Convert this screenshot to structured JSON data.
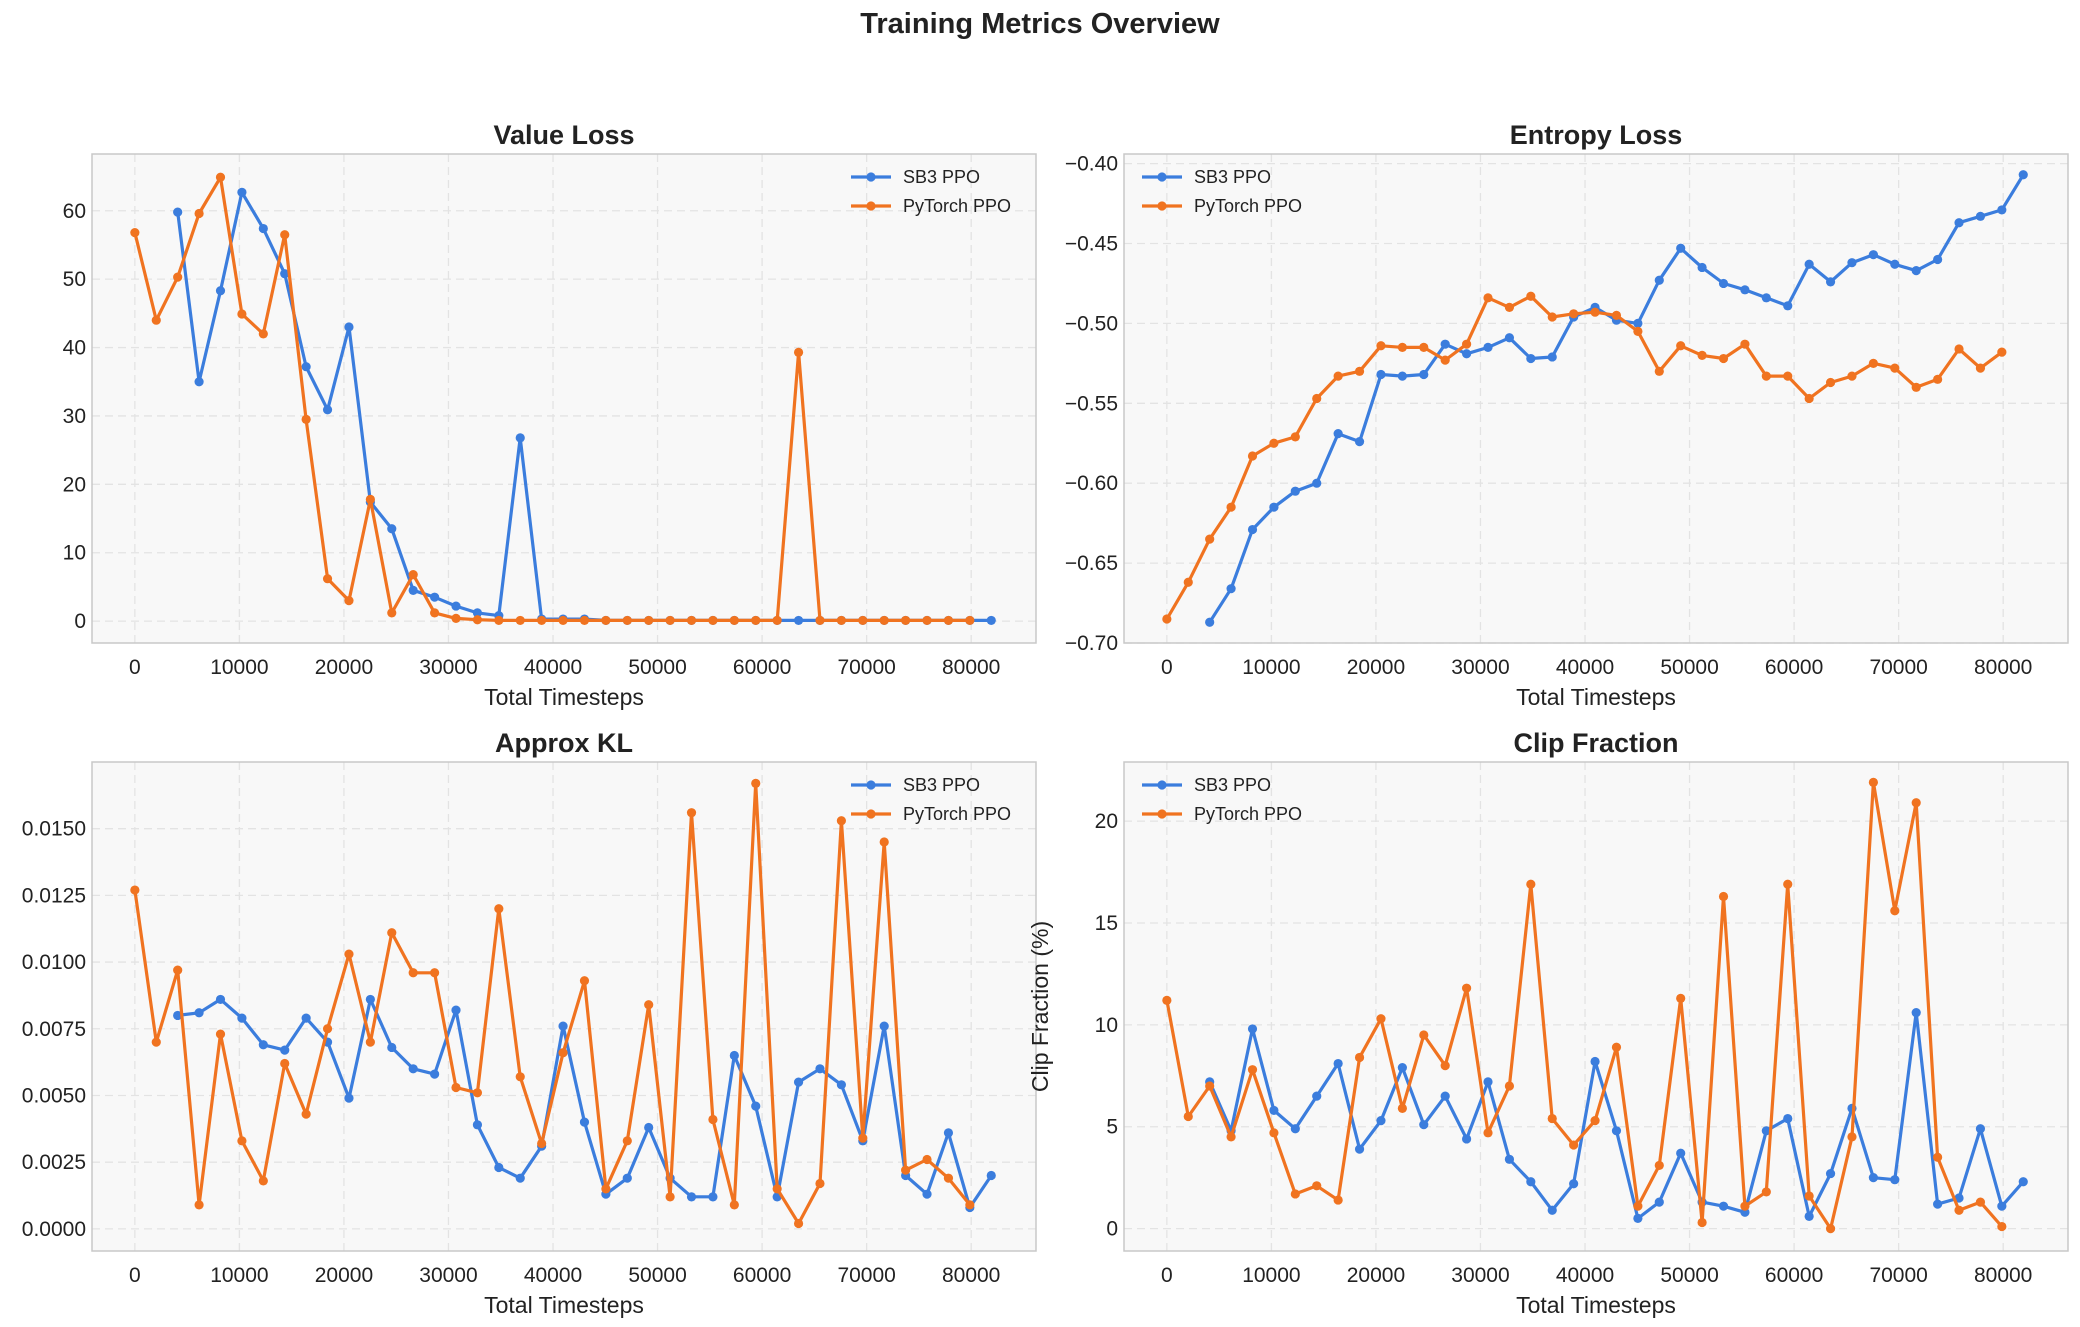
{
  "figure": {
    "title": "Training Metrics Overview"
  },
  "colors": {
    "sb3": "#3b7ddd",
    "pytorch": "#f07320",
    "plot_bg": "#f8f8f8",
    "grid": "#e3e3e3",
    "frame": "#c8c8c8",
    "text": "#222222"
  },
  "chart_data": [
    {
      "type": "line",
      "title": "Value Loss",
      "xlabel": "Total Timesteps",
      "ylabel": "",
      "xlim": [
        -4100,
        86200
      ],
      "ylim": [
        -3.2,
        68.3
      ],
      "xticks": [
        0,
        10000,
        20000,
        30000,
        40000,
        50000,
        60000,
        70000,
        80000
      ],
      "xtick_labels": [
        "0",
        "10000",
        "20000",
        "30000",
        "40000",
        "50000",
        "60000",
        "70000",
        "80000"
      ],
      "yticks": [
        0,
        10,
        20,
        30,
        40,
        50,
        60
      ],
      "ytick_labels": [
        "0",
        "10",
        "20",
        "30",
        "40",
        "50",
        "60"
      ],
      "legend": "top-right",
      "grid": true,
      "series": [
        {
          "name": "SB3 PPO",
          "x": [
            4096,
            6144,
            8192,
            10240,
            12288,
            14336,
            16384,
            18432,
            20480,
            22528,
            24576,
            26624,
            28672,
            30720,
            32768,
            34816,
            36864,
            38912,
            40960,
            43008,
            45056,
            47104,
            49152,
            51200,
            53248,
            55296,
            57344,
            59392,
            61440,
            63488,
            65536,
            67584,
            69632,
            71680,
            73728,
            75776,
            77824,
            79872,
            81920
          ],
          "values": [
            59.8,
            35,
            48.3,
            62.7,
            57.4,
            50.8,
            37.2,
            30.9,
            43,
            17.4,
            13.5,
            4.5,
            3.5,
            2.2,
            1.2,
            0.8,
            26.8,
            0.3,
            0.3,
            0.3,
            0.1,
            0.1,
            0.1,
            0.1,
            0.1,
            0.1,
            0.1,
            0.1,
            0.1,
            0.1,
            0.1,
            0.1,
            0.1,
            0.1,
            0.1,
            0.1,
            0.1,
            0.1,
            0.1
          ]
        },
        {
          "name": "PyTorch PPO",
          "x": [
            0,
            2048,
            4096,
            6144,
            8192,
            10240,
            12288,
            14336,
            16384,
            18432,
            20480,
            22528,
            24576,
            26624,
            28672,
            30720,
            32768,
            34816,
            36864,
            38912,
            40960,
            43008,
            45056,
            47104,
            49152,
            51200,
            53248,
            55296,
            57344,
            59392,
            61440,
            63488,
            65536,
            67584,
            69632,
            71680,
            73728,
            75776,
            77824,
            79872
          ],
          "values": [
            56.8,
            44,
            50.3,
            59.6,
            64.9,
            44.9,
            42,
            56.5,
            29.5,
            6.2,
            3,
            17.8,
            1.2,
            6.8,
            1.2,
            0.4,
            0.2,
            0.1,
            0.1,
            0.1,
            0.1,
            0.1,
            0.1,
            0.1,
            0.1,
            0.1,
            0.1,
            0.1,
            0.1,
            0.1,
            0.1,
            39.3,
            0.1,
            0.1,
            0.1,
            0.1,
            0.1,
            0.1,
            0.1,
            0.1
          ]
        }
      ]
    },
    {
      "type": "line",
      "title": "Entropy Loss",
      "xlabel": "Total Timesteps",
      "ylabel": "",
      "xlim": [
        -4100,
        86200
      ],
      "ylim": [
        -0.7,
        -0.394
      ],
      "xticks": [
        0,
        10000,
        20000,
        30000,
        40000,
        50000,
        60000,
        70000,
        80000
      ],
      "xtick_labels": [
        "0",
        "10000",
        "20000",
        "30000",
        "40000",
        "50000",
        "60000",
        "70000",
        "80000"
      ],
      "yticks": [
        -0.7,
        -0.65,
        -0.6,
        -0.55,
        -0.5,
        -0.45,
        -0.4
      ],
      "ytick_labels": [
        "−0.70",
        "−0.65",
        "−0.60",
        "−0.55",
        "−0.50",
        "−0.45",
        "−0.40"
      ],
      "legend": "top-left",
      "grid": true,
      "series": [
        {
          "name": "SB3 PPO",
          "x": [
            4096,
            6144,
            8192,
            10240,
            12288,
            14336,
            16384,
            18432,
            20480,
            22528,
            24576,
            26624,
            28672,
            30720,
            32768,
            34816,
            36864,
            38912,
            40960,
            43008,
            45056,
            47104,
            49152,
            51200,
            53248,
            55296,
            57344,
            59392,
            61440,
            63488,
            65536,
            67584,
            69632,
            71680,
            73728,
            75776,
            77824,
            79872,
            81920
          ],
          "values": [
            -0.687,
            -0.666,
            -0.629,
            -0.615,
            -0.605,
            -0.6,
            -0.569,
            -0.574,
            -0.532,
            -0.533,
            -0.532,
            -0.513,
            -0.519,
            -0.515,
            -0.509,
            -0.522,
            -0.521,
            -0.496,
            -0.49,
            -0.498,
            -0.5,
            -0.473,
            -0.453,
            -0.465,
            -0.475,
            -0.479,
            -0.484,
            -0.489,
            -0.463,
            -0.474,
            -0.462,
            -0.457,
            -0.463,
            -0.467,
            -0.46,
            -0.437,
            -0.433,
            -0.429,
            -0.407
          ]
        },
        {
          "name": "PyTorch PPO",
          "x": [
            0,
            2048,
            4096,
            6144,
            8192,
            10240,
            12288,
            14336,
            16384,
            18432,
            20480,
            22528,
            24576,
            26624,
            28672,
            30720,
            32768,
            34816,
            36864,
            38912,
            40960,
            43008,
            45056,
            47104,
            49152,
            51200,
            53248,
            55296,
            57344,
            59392,
            61440,
            63488,
            65536,
            67584,
            69632,
            71680,
            73728,
            75776,
            77824,
            79872
          ],
          "values": [
            -0.685,
            -0.662,
            -0.635,
            -0.615,
            -0.583,
            -0.575,
            -0.571,
            -0.547,
            -0.533,
            -0.53,
            -0.514,
            -0.515,
            -0.515,
            -0.523,
            -0.513,
            -0.484,
            -0.49,
            -0.483,
            -0.496,
            -0.494,
            -0.493,
            -0.495,
            -0.505,
            -0.53,
            -0.514,
            -0.52,
            -0.522,
            -0.513,
            -0.533,
            -0.533,
            -0.547,
            -0.537,
            -0.533,
            -0.525,
            -0.528,
            -0.54,
            -0.535,
            -0.516,
            -0.528,
            -0.518
          ]
        }
      ]
    },
    {
      "type": "line",
      "title": "Approx KL",
      "xlabel": "Total Timesteps",
      "ylabel": "",
      "xlim": [
        -4100,
        86200
      ],
      "ylim": [
        -0.00083,
        0.0175
      ],
      "xticks": [
        0,
        10000,
        20000,
        30000,
        40000,
        50000,
        60000,
        70000,
        80000
      ],
      "xtick_labels": [
        "0",
        "10000",
        "20000",
        "30000",
        "40000",
        "50000",
        "60000",
        "70000",
        "80000"
      ],
      "yticks": [
        0,
        0.0025,
        0.005,
        0.0075,
        0.01,
        0.0125,
        0.015
      ],
      "ytick_labels": [
        "0.0000",
        "0.0025",
        "0.0050",
        "0.0075",
        "0.0100",
        "0.0125",
        "0.0150"
      ],
      "legend": "top-right",
      "grid": true,
      "series": [
        {
          "name": "SB3 PPO",
          "x": [
            4096,
            6144,
            8192,
            10240,
            12288,
            14336,
            16384,
            18432,
            20480,
            22528,
            24576,
            26624,
            28672,
            30720,
            32768,
            34816,
            36864,
            38912,
            40960,
            43008,
            45056,
            47104,
            49152,
            51200,
            53248,
            55296,
            57344,
            59392,
            61440,
            63488,
            65536,
            67584,
            69632,
            71680,
            73728,
            75776,
            77824,
            79872,
            81920
          ],
          "values": [
            0.008,
            0.0081,
            0.0086,
            0.0079,
            0.0069,
            0.0067,
            0.0079,
            0.007,
            0.0049,
            0.0086,
            0.0068,
            0.006,
            0.0058,
            0.0082,
            0.0039,
            0.0023,
            0.0019,
            0.0031,
            0.0076,
            0.004,
            0.0013,
            0.0019,
            0.0038,
            0.0019,
            0.0012,
            0.0012,
            0.0065,
            0.0046,
            0.0012,
            0.0055,
            0.006,
            0.0054,
            0.0033,
            0.0076,
            0.002,
            0.0013,
            0.0036,
            0.0008,
            0.002
          ]
        },
        {
          "name": "PyTorch PPO",
          "x": [
            0,
            2048,
            4096,
            6144,
            8192,
            10240,
            12288,
            14336,
            16384,
            18432,
            20480,
            22528,
            24576,
            26624,
            28672,
            30720,
            32768,
            34816,
            36864,
            38912,
            40960,
            43008,
            45056,
            47104,
            49152,
            51200,
            53248,
            55296,
            57344,
            59392,
            61440,
            63488,
            65536,
            67584,
            69632,
            71680,
            73728,
            75776,
            77824,
            79872
          ],
          "values": [
            0.0127,
            0.007,
            0.0097,
            0.0009,
            0.0073,
            0.0033,
            0.0018,
            0.0062,
            0.0043,
            0.0075,
            0.0103,
            0.007,
            0.0111,
            0.0096,
            0.0096,
            0.0053,
            0.0051,
            0.012,
            0.0057,
            0.0032,
            0.0066,
            0.0093,
            0.0015,
            0.0033,
            0.0084,
            0.0012,
            0.0156,
            0.0041,
            0.0009,
            0.0167,
            0.0015,
            0.0002,
            0.0017,
            0.0153,
            0.0034,
            0.0145,
            0.0022,
            0.0026,
            0.0019,
            0.0009
          ]
        }
      ]
    },
    {
      "type": "line",
      "title": "Clip Fraction",
      "xlabel": "Total Timesteps",
      "ylabel": "Clip Fraction (%)",
      "xlim": [
        -4100,
        86200
      ],
      "ylim": [
        -1.1,
        22.9
      ],
      "xticks": [
        0,
        10000,
        20000,
        30000,
        40000,
        50000,
        60000,
        70000,
        80000
      ],
      "xtick_labels": [
        "0",
        "10000",
        "20000",
        "30000",
        "40000",
        "50000",
        "60000",
        "70000",
        "80000"
      ],
      "yticks": [
        0,
        5,
        10,
        15,
        20
      ],
      "ytick_labels": [
        "0",
        "5",
        "10",
        "15",
        "20"
      ],
      "legend": "top-left",
      "grid": true,
      "series": [
        {
          "name": "SB3 PPO",
          "x": [
            4096,
            6144,
            8192,
            10240,
            12288,
            14336,
            16384,
            18432,
            20480,
            22528,
            24576,
            26624,
            28672,
            30720,
            32768,
            34816,
            36864,
            38912,
            40960,
            43008,
            45056,
            47104,
            49152,
            51200,
            53248,
            55296,
            57344,
            59392,
            61440,
            63488,
            65536,
            67584,
            69632,
            71680,
            73728,
            75776,
            77824,
            79872,
            81920
          ],
          "values": [
            7.2,
            4.8,
            9.8,
            5.8,
            4.9,
            6.5,
            8.1,
            3.9,
            5.3,
            7.9,
            5.1,
            6.5,
            4.4,
            7.2,
            3.4,
            2.3,
            0.9,
            2.2,
            8.2,
            4.8,
            0.5,
            1.3,
            3.7,
            1.3,
            1.1,
            0.8,
            4.8,
            5.4,
            0.6,
            2.7,
            5.9,
            2.5,
            2.4,
            10.6,
            1.2,
            1.5,
            4.9,
            1.1,
            2.3
          ]
        },
        {
          "name": "PyTorch PPO",
          "x": [
            0,
            2048,
            4096,
            6144,
            8192,
            10240,
            12288,
            14336,
            16384,
            18432,
            20480,
            22528,
            24576,
            26624,
            28672,
            30720,
            32768,
            34816,
            36864,
            38912,
            40960,
            43008,
            45056,
            47104,
            49152,
            51200,
            53248,
            55296,
            57344,
            59392,
            61440,
            63488,
            65536,
            67584,
            69632,
            71680,
            73728,
            75776,
            77824,
            79872
          ],
          "values": [
            11.2,
            5.5,
            7,
            4.5,
            7.8,
            4.7,
            1.7,
            2.1,
            1.4,
            8.4,
            10.3,
            5.9,
            9.5,
            8,
            11.8,
            4.7,
            7,
            16.9,
            5.4,
            4.1,
            5.3,
            8.9,
            1.1,
            3.1,
            11.3,
            0.3,
            16.3,
            1.1,
            1.8,
            16.9,
            1.6,
            0,
            4.5,
            21.9,
            15.6,
            20.9,
            3.5,
            0.9,
            1.3,
            0.1
          ]
        }
      ]
    }
  ]
}
